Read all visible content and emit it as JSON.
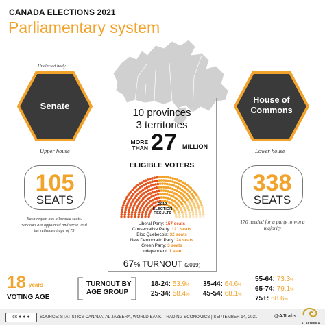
{
  "header": {
    "kicker": "CANADA ELECTIONS 2021",
    "title": "Parliamentary system"
  },
  "senate": {
    "tag": "Unelected body",
    "name": "Senate",
    "subtitle": "Upper house",
    "seats_number": "105",
    "seats_label": "SEATS",
    "note": "Each region has allocated seats. Senators are appointed and serve until the retirement age of 75"
  },
  "commons": {
    "name_line1": "House of",
    "name_line2": "Commons",
    "subtitle": "Lower house",
    "seats_number": "338",
    "seats_label": "SEATS",
    "note": "170 needed for a party to win a majority"
  },
  "center": {
    "provinces": "10 provinces",
    "territories": "3 territories",
    "more_than": "MORE THAN",
    "voters_number": "27",
    "million": "MILLION",
    "eligible": "ELIGIBLE VOTERS",
    "results_title_1": "2019",
    "results_title_2": "ELECTION",
    "results_title_3": "RESULTS",
    "turnout_pct": "67",
    "turnout_symbol": "%",
    "turnout_label": "TURNOUT",
    "turnout_year": "(2019)"
  },
  "results": [
    {
      "party": "Liberal Party:",
      "seats": "157 seats",
      "value": 157,
      "color": "#E4551E"
    },
    {
      "party": "Conservative Party:",
      "seats": "121 seats",
      "value": 121,
      "color": "#F2A32B"
    },
    {
      "party": "Bloc Quebecois:",
      "seats": "32 seats",
      "value": 32,
      "color": "#F5C56A"
    },
    {
      "party": "New Democratic Party:",
      "seats": "24 seats",
      "value": 24,
      "color": "#F8D9A0"
    },
    {
      "party": "Green Party:",
      "seats": "3 seats",
      "value": 3,
      "color": "#FBE6C2"
    },
    {
      "party": "Independent:",
      "seats": "1 seat",
      "value": 1,
      "color": "#FDF1DD"
    }
  ],
  "voting_age": {
    "number": "18",
    "unit": "years",
    "label": "VOTING AGE"
  },
  "turnout_by_age": {
    "label_line1": "TURNOUT BY",
    "label_line2": "AGE GROUP",
    "groups": [
      {
        "age": "18-24:",
        "pct": "53.9",
        "sym": "%"
      },
      {
        "age": "25-34:",
        "pct": "58.4",
        "sym": "%"
      },
      {
        "age": "35-44:",
        "pct": "64.6",
        "sym": "%"
      },
      {
        "age": "45-54:",
        "pct": "68.1",
        "sym": "%"
      },
      {
        "age": "55-64:",
        "pct": "73.3",
        "sym": "%"
      },
      {
        "age": "65-74:",
        "pct": "79.1",
        "sym": "%"
      },
      {
        "age": "75+:",
        "pct": "68.6",
        "sym": "%"
      }
    ]
  },
  "footer": {
    "source": "SOURCE: STATISTICS CANADA, AL JAZEERA, WORLD BANK, TRADING ECONOMICS  |  SEPTEMBER 14, 2021",
    "handle": "@AJLabs",
    "brand": "ALJAZEERA",
    "cc": "cc"
  },
  "colors": {
    "accent": "#F2A32B",
    "hex_fill": "#3A3A3A",
    "map": "#D0D0D0"
  },
  "icons": [
    "canada-map-icon",
    "creative-commons-icon",
    "aljazeera-logo-icon"
  ]
}
